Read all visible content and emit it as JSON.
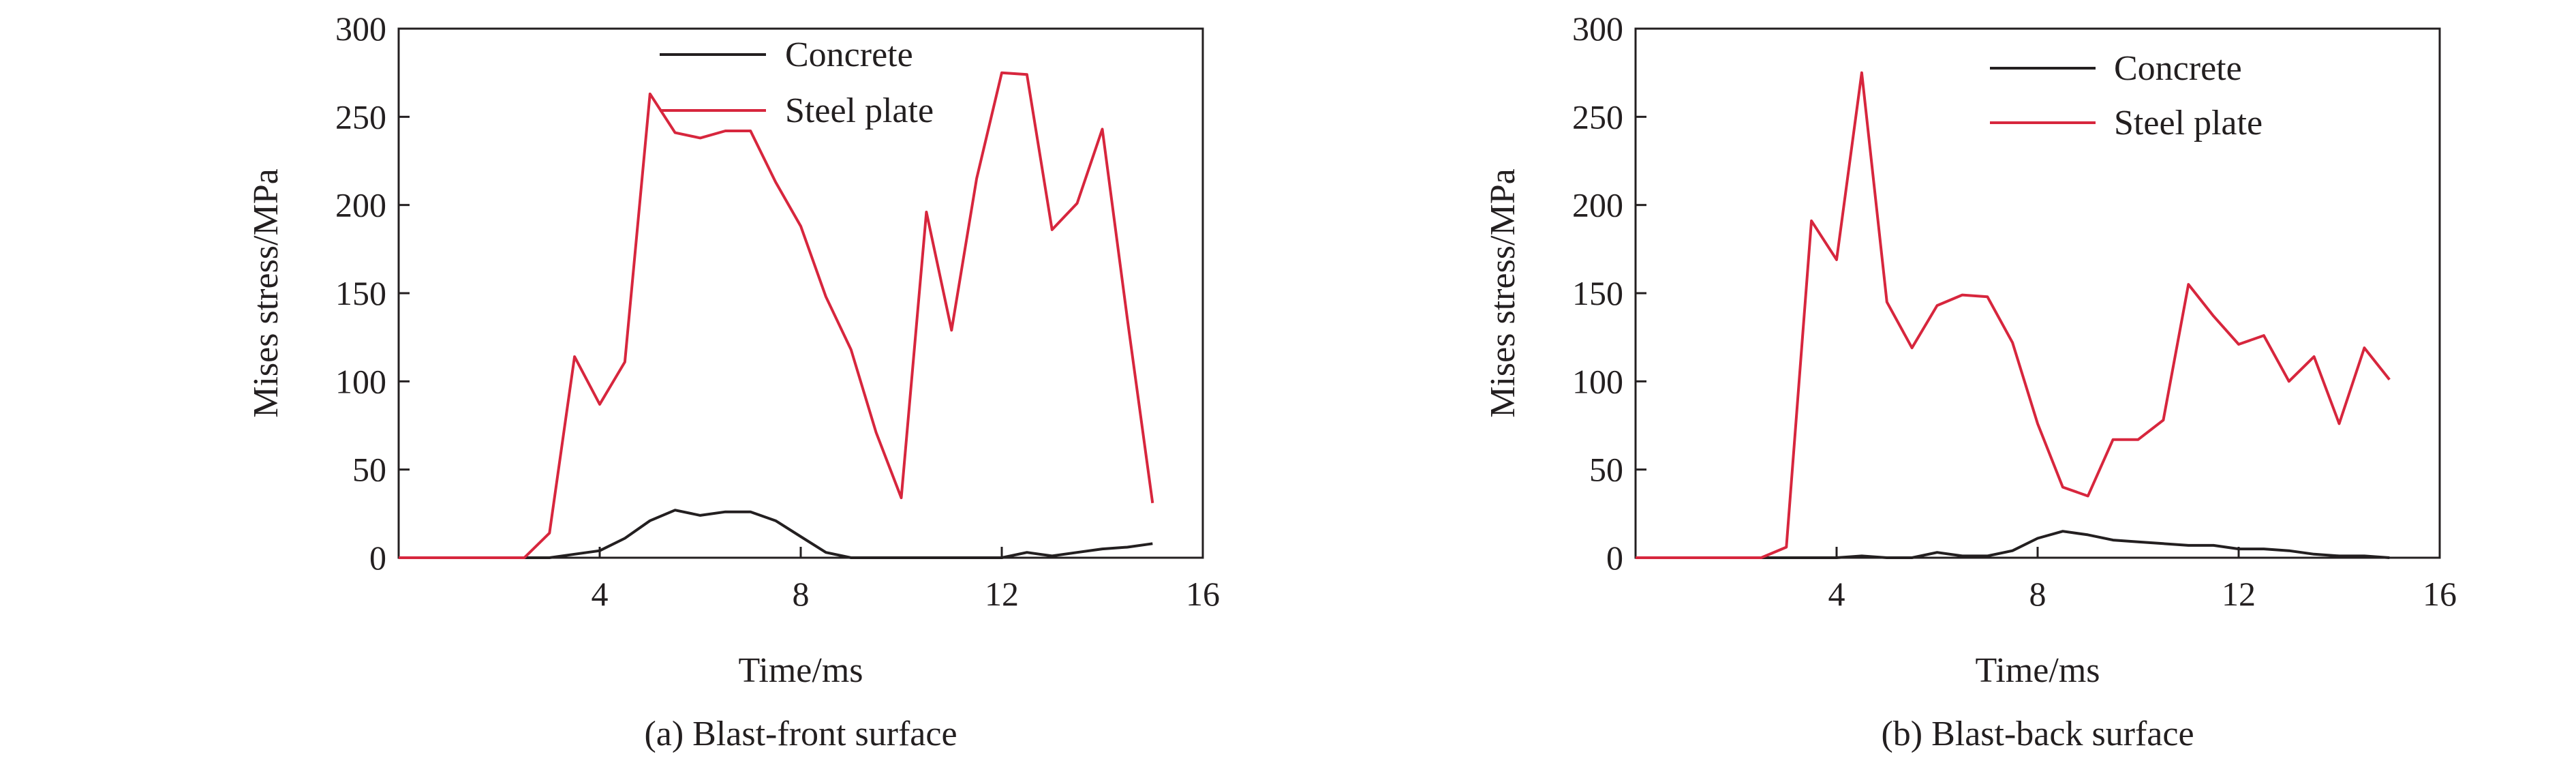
{
  "chart_data": [
    {
      "type": "line",
      "caption": "(a) Blast-front surface",
      "xlabel": "Time/ms",
      "ylabel": "Mises stress/MPa",
      "xlim": [
        0,
        16
      ],
      "ylim": [
        0,
        300
      ],
      "xticks": [
        4,
        8,
        12,
        16
      ],
      "yticks": [
        0,
        50,
        100,
        150,
        200,
        250,
        300
      ],
      "grid": false,
      "legend_position": "top-right",
      "series": [
        {
          "name": "Concrete",
          "color": "#231f20",
          "x": [
            0,
            0.5,
            1,
            1.5,
            2,
            2.5,
            3,
            3.5,
            4,
            4.5,
            5,
            5.5,
            6,
            6.5,
            7,
            7.5,
            8,
            8.5,
            9,
            9.5,
            10,
            10.5,
            11,
            11.5,
            12,
            12.5,
            13,
            13.5,
            14,
            14.5,
            15
          ],
          "values": [
            0,
            0,
            0,
            0,
            0,
            0,
            0,
            2,
            4,
            11,
            21,
            27,
            24,
            26,
            26,
            21,
            12,
            3,
            0,
            0,
            0,
            0,
            0,
            0,
            0,
            3,
            1,
            3,
            5,
            6,
            8
          ]
        },
        {
          "name": "Steel plate",
          "color": "#d7263d",
          "x": [
            0,
            0.5,
            1,
            1.5,
            2,
            2.5,
            3,
            3.5,
            4,
            4.5,
            5,
            5.5,
            6,
            6.5,
            7,
            7.5,
            8,
            8.5,
            9,
            9.5,
            10,
            10.5,
            11,
            11.5,
            12,
            12.5,
            13,
            13.5,
            14,
            14.5,
            15
          ],
          "values": [
            0,
            0,
            0,
            0,
            0,
            0,
            14,
            114,
            87,
            111,
            263,
            241,
            238,
            242,
            242,
            213,
            188,
            148,
            118,
            71,
            34,
            196,
            129,
            215,
            275,
            274,
            186,
            201,
            243,
            135,
            31
          ]
        }
      ]
    },
    {
      "type": "line",
      "caption": "(b) Blast-back surface",
      "xlabel": "Time/ms",
      "ylabel": "Mises stress/MPa",
      "xlim": [
        0,
        16
      ],
      "ylim": [
        0,
        300
      ],
      "xticks": [
        4,
        8,
        12,
        16
      ],
      "yticks": [
        0,
        50,
        100,
        150,
        200,
        250,
        300
      ],
      "grid": false,
      "legend_position": "top-right",
      "series": [
        {
          "name": "Concrete",
          "color": "#231f20",
          "x": [
            0,
            0.5,
            1,
            1.5,
            2,
            2.5,
            3,
            3.5,
            4,
            4.5,
            5,
            5.5,
            6,
            6.5,
            7,
            7.5,
            8,
            8.5,
            9,
            9.5,
            10,
            10.5,
            11,
            11.5,
            12,
            12.5,
            13,
            13.5,
            14,
            14.5,
            15
          ],
          "values": [
            0,
            0,
            0,
            0,
            0,
            0,
            0,
            0,
            0,
            1,
            0,
            0,
            3,
            1,
            1,
            4,
            11,
            15,
            13,
            10,
            9,
            8,
            7,
            7,
            5,
            5,
            4,
            2,
            1,
            1,
            0
          ]
        },
        {
          "name": "Steel plate",
          "color": "#d7263d",
          "x": [
            0,
            0.5,
            1,
            1.5,
            2,
            2.5,
            3,
            3.5,
            4,
            4.5,
            5,
            5.5,
            6,
            6.5,
            7,
            7.5,
            8,
            8.5,
            9,
            9.5,
            10,
            10.5,
            11,
            11.5,
            12,
            12.5,
            13,
            13.5,
            14,
            14.5,
            15
          ],
          "values": [
            0,
            0,
            0,
            0,
            0,
            0,
            6,
            191,
            169,
            275,
            145,
            119,
            143,
            149,
            148,
            122,
            76,
            40,
            35,
            67,
            67,
            78,
            155,
            137,
            121,
            126,
            100,
            114,
            76,
            119,
            101
          ]
        }
      ]
    }
  ]
}
